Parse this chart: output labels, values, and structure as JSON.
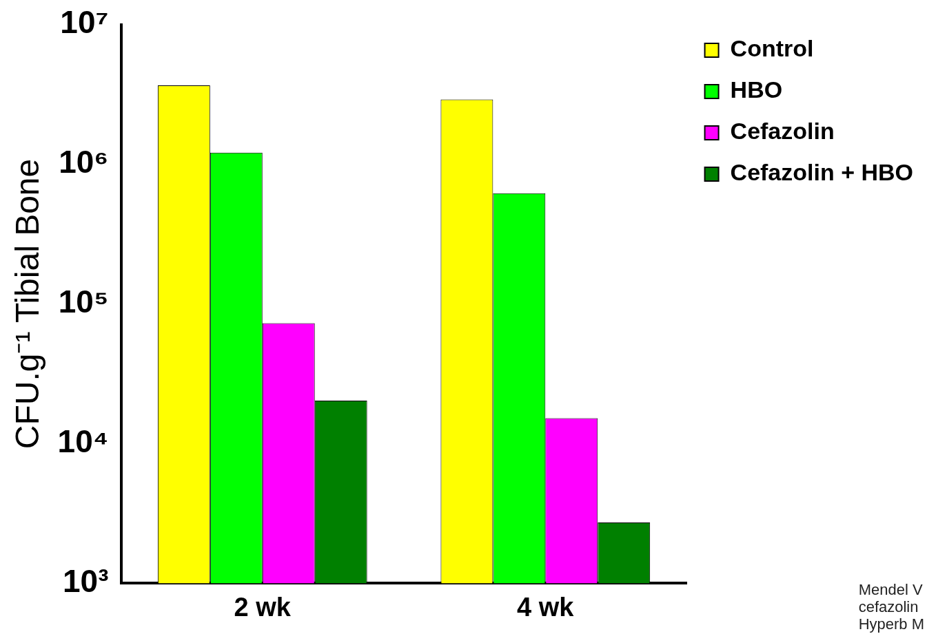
{
  "chart_data": {
    "type": "bar",
    "ylabel": "CFU.g⁻¹ Tibial Bone",
    "categories": [
      "2 wk",
      "4 wk"
    ],
    "series": [
      {
        "name": "Control",
        "color": "#ffff00",
        "values": [
          3670000,
          2910000
        ]
      },
      {
        "name": "HBO",
        "color": "#00ff00",
        "values": [
          1210000,
          620000
        ]
      },
      {
        "name": "Cefazolin",
        "color": "#ff00ff",
        "values": [
          72800,
          15200
        ]
      },
      {
        "name": "Cefazolin + HBO",
        "color": "#008000",
        "values": [
          20300,
          2730
        ]
      }
    ],
    "log": "y",
    "ylim": [
      1000,
      10000000
    ],
    "yticks": [
      {
        "value": 1000,
        "label": "10³"
      },
      {
        "value": 10000,
        "label": "10⁴"
      },
      {
        "value": 100000,
        "label": "10⁵"
      },
      {
        "value": 1000000,
        "label": "10⁶"
      },
      {
        "value": 10000000,
        "label": "10⁷"
      }
    ],
    "legend": "right",
    "grid": false,
    "annotations": [
      "Mendel V",
      "cefazolin",
      "Hyperb M"
    ]
  }
}
